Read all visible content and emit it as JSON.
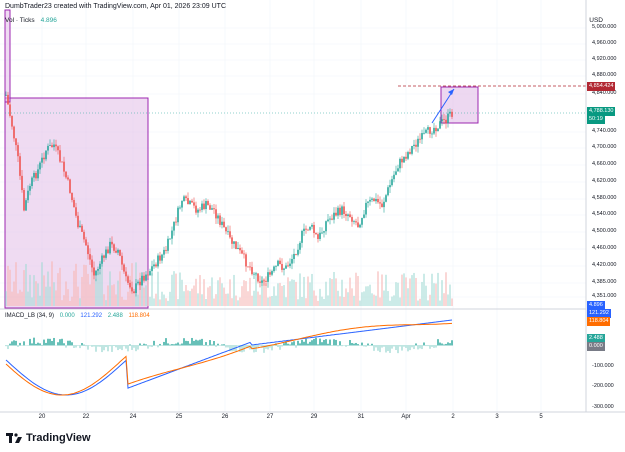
{
  "header": {
    "text": "DumbTrader23 created with TradingView.com, Apr 01, 2026 23:09 UTC"
  },
  "volume_legend": {
    "label": "Vol · Ticks",
    "value": "4.896"
  },
  "macd_legend": {
    "label": "IMACD_LB (34, 9)",
    "v1": "0.000",
    "v2": "121.292",
    "v3": "2.488",
    "v4": "118.804"
  },
  "price_axis": {
    "currency": "USD",
    "ticks": [
      "5,000.000",
      "4,960.000",
      "4,920.000",
      "4,880.000",
      "4,840.000",
      "4,800.000",
      "4,740.000",
      "4,700.000",
      "4,660.000",
      "4,620.000",
      "4,580.000",
      "4,540.000",
      "4,500.000",
      "4,460.000",
      "4,420.000",
      "4,385.000",
      "4,351.000"
    ],
    "badges": [
      {
        "text": "4,854.424",
        "color": "#b22833"
      },
      {
        "text": "4,788.130",
        "color": "#089981"
      },
      {
        "text": "50:19",
        "color": "#089981"
      },
      {
        "text": "4.896",
        "color": "#2962ff"
      },
      {
        "text": "121.292",
        "color": "#2962ff"
      },
      {
        "text": "118.804",
        "color": "#ff6d00"
      },
      {
        "text": "2.488",
        "color": "#26a69a"
      },
      {
        "text": "0.000",
        "color": "#787b86"
      }
    ]
  },
  "macd_axis": {
    "ticks": [
      "-100.000",
      "-200.000",
      "-300.000"
    ]
  },
  "time_axis": {
    "labels": [
      "20",
      "22",
      "24",
      "25",
      "26",
      "27",
      "29",
      "31",
      "Apr",
      "2",
      "3",
      "5"
    ]
  },
  "branding": {
    "name": "TradingView"
  },
  "colors": {
    "up": "#26a69a",
    "down": "#ef5350",
    "box": "#9c27b0",
    "macd": "#2962ff",
    "signal": "#ff6d00"
  }
}
